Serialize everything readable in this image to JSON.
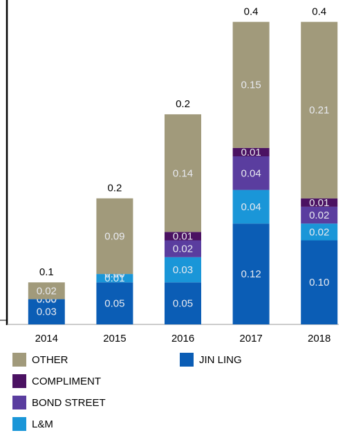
{
  "chart_data": {
    "type": "stacked-bar",
    "categories": [
      "2014",
      "2015",
      "2016",
      "2017",
      "2018"
    ],
    "series": [
      {
        "name": "JIN LING",
        "color": "#0b5db5",
        "values": [
          0.03,
          0.05,
          0.05,
          0.12,
          0.1
        ],
        "value_labels": [
          "0.03",
          "0.05",
          "0.05",
          "0.12",
          "0.10"
        ]
      },
      {
        "name": "L&M",
        "color": "#1a96d8",
        "values": [
          0,
          0.01,
          0.03,
          0.04,
          0.02
        ],
        "value_labels": [
          "0.00",
          "0.01",
          "0.03",
          "0.04",
          "0.02"
        ]
      },
      {
        "name": "BOND STREET",
        "color": "#5a3d9f",
        "values": [
          0,
          0,
          0.02,
          0.04,
          0.02
        ],
        "value_labels": [
          "0.00",
          "0.00",
          "0.02",
          "0.04",
          "0.02"
        ]
      },
      {
        "name": "COMPLIMENT",
        "color": "#4b1262",
        "values": [
          0,
          0,
          0.01,
          0.01,
          0.01
        ],
        "value_labels": [
          "0.00",
          "0.00",
          "0.01",
          "0.01",
          "0.01"
        ]
      },
      {
        "name": "OTHER",
        "color": "#a19a7b",
        "values": [
          0.02,
          0.09,
          0.14,
          0.15,
          0.21
        ],
        "value_labels": [
          "0.02",
          "0.09",
          "0.14",
          "0.15",
          "0.21"
        ]
      }
    ],
    "totals": [
      0.06,
      0.16,
      0.24,
      0.36,
      0.36
    ],
    "total_labels": [
      "0.1",
      "0.2",
      "0.2",
      "0.4",
      "0.4"
    ],
    "ylim": [
      0,
      0.4
    ]
  }
}
